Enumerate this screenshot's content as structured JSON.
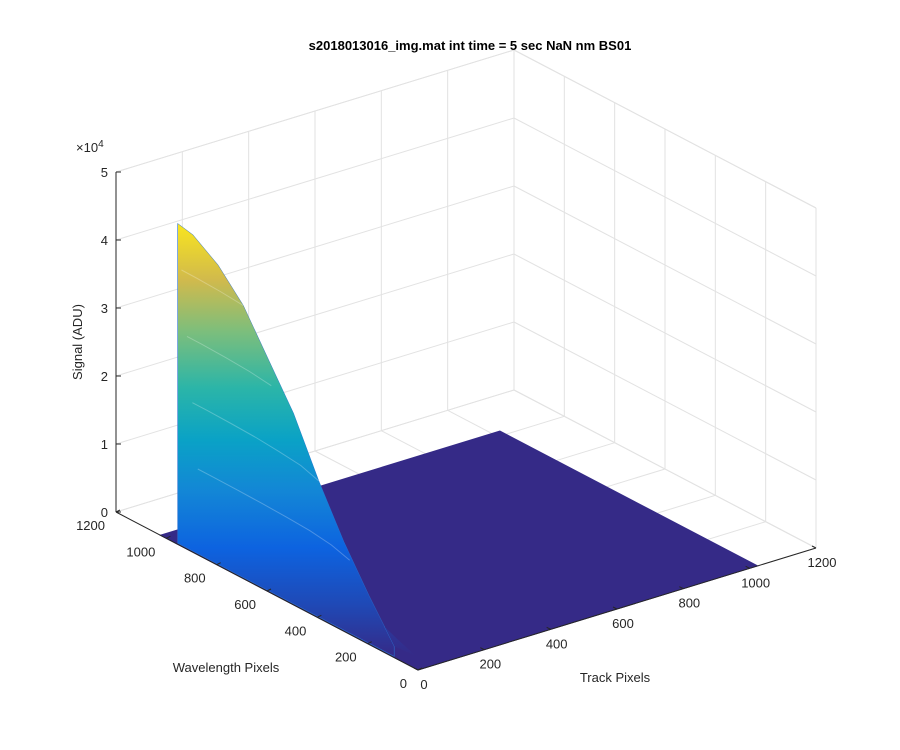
{
  "chart_data": {
    "type": "surface",
    "title": "s2018013016_img.mat int time = 5 sec  NaN nm BS01",
    "xlabel": "Track Pixels",
    "ylabel": "Wavelength Pixels",
    "zlabel": "Signal (ADU)",
    "xlim": [
      0,
      1200
    ],
    "ylim": [
      0,
      1200
    ],
    "zlim": [
      0,
      50000
    ],
    "x_ticks": [
      "0",
      "200",
      "400",
      "600",
      "800",
      "1000",
      "1200"
    ],
    "y_ticks": [
      "0",
      "200",
      "400",
      "600",
      "800",
      "1000",
      "1200"
    ],
    "z_ticks": [
      "0",
      "1",
      "2",
      "3",
      "4",
      "5"
    ],
    "z_exponent_label": "×10",
    "z_exponent_power": "4",
    "grid": true,
    "colormap": "parula",
    "floor_color": "#352a87",
    "surface_extent": {
      "track_pixels": [
        0,
        1024
      ],
      "wavelength_pixels": [
        0,
        1024
      ]
    },
    "ridge": {
      "track_pixel": 0,
      "wavelength_pixels": [
        960,
        900,
        800,
        700,
        600,
        500,
        400,
        300,
        200,
        100
      ],
      "peak_signal": [
        47000,
        46500,
        44000,
        40000,
        34000,
        28000,
        20000,
        13000,
        7000,
        1500
      ]
    }
  }
}
